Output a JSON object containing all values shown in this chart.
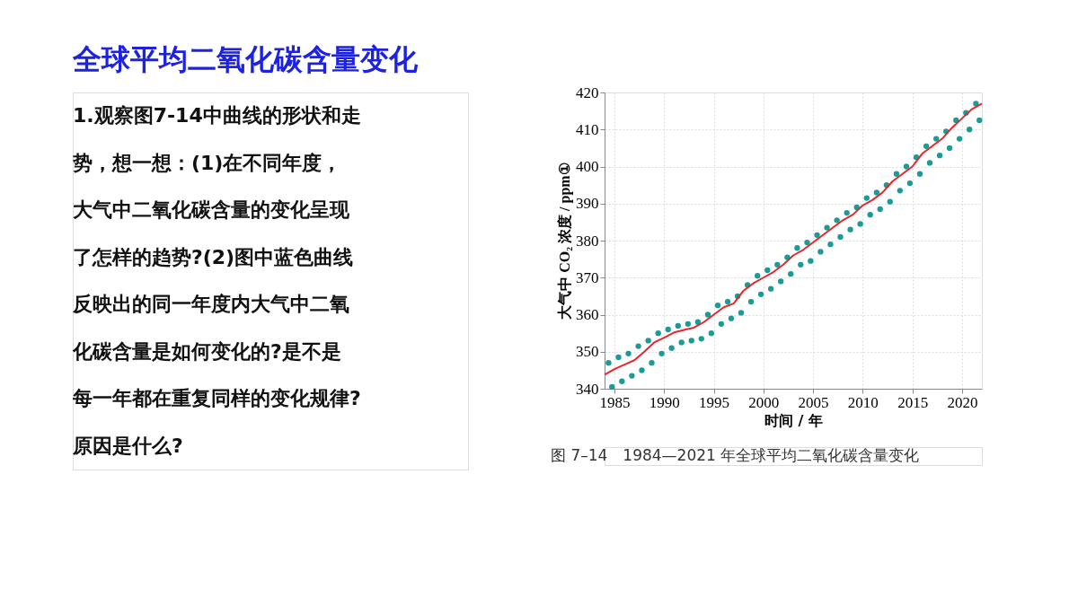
{
  "chart_data": {
    "type": "line",
    "title": "全球平均二氧化碳含量变化",
    "annotations": [
      "1.观察图7-14中曲线的形状和走",
      "势，想一想：(1)在不同年度，",
      "大气中二氧化碳含量的变化呈现",
      "了怎样的趋势?(2)图中蓝色曲线",
      "反映出的同一年度内大气中二氧",
      "化碳含量是如何变化的?是不是",
      "每一年都在重复同样的变化规律?",
      "原因是什么?",
      "图 7–14　1984—2021 年全球平均二氧化碳含量变化"
    ],
    "xlabel": "时间 / 年",
    "ylabel": "大气中 CO₂ 浓度 / ppm①",
    "xlim": [
      1984,
      2022
    ],
    "xticks": [
      1985,
      1990,
      1995,
      2000,
      2005,
      2010,
      2015,
      2020
    ],
    "ylim": [
      340,
      420
    ],
    "yticks": [
      340,
      350,
      360,
      370,
      380,
      390,
      400,
      410,
      420
    ],
    "grid": true,
    "series": [
      {
        "type": "scatter",
        "marker": "circle",
        "color": "#1a9b95",
        "x": [
          1984.4,
          1984.75,
          1985.4,
          1985.75,
          1986.4,
          1986.75,
          1987.4,
          1987.75,
          1988.4,
          1988.75,
          1989.4,
          1989.75,
          1990.4,
          1990.75,
          1991.4,
          1991.75,
          1992.4,
          1992.75,
          1993.4,
          1993.75,
          1994.4,
          1994.75,
          1995.4,
          1995.75,
          1996.4,
          1996.75,
          1997.4,
          1997.75,
          1998.4,
          1998.75,
          1999.4,
          1999.75,
          2000.4,
          2000.75,
          2001.4,
          2001.75,
          2002.4,
          2002.75,
          2003.4,
          2003.75,
          2004.4,
          2004.75,
          2005.4,
          2005.75,
          2006.4,
          2006.75,
          2007.4,
          2007.75,
          2008.4,
          2008.75,
          2009.4,
          2009.75,
          2010.4,
          2010.75,
          2011.4,
          2011.75,
          2012.4,
          2012.75,
          2013.4,
          2013.75,
          2014.4,
          2014.75,
          2015.4,
          2015.75,
          2016.4,
          2016.75,
          2017.4,
          2017.75,
          2018.4,
          2018.75,
          2019.4,
          2019.75,
          2020.4,
          2020.75,
          2021.4,
          2021.75
        ],
        "values": [
          347,
          340.5,
          348.5,
          342,
          349.5,
          343.5,
          351.5,
          345,
          353,
          347,
          355,
          349.5,
          356,
          351,
          357,
          352.5,
          357.5,
          353,
          358,
          353.5,
          360,
          355,
          362.5,
          357.5,
          363.5,
          359,
          365,
          360.5,
          368,
          363.5,
          370.5,
          365.5,
          372,
          367,
          373.5,
          369,
          375.5,
          371,
          378,
          373.5,
          379.5,
          374.5,
          381.5,
          377,
          383.5,
          379,
          385.5,
          381,
          387.5,
          383,
          389,
          384.5,
          391.5,
          387,
          393,
          388.5,
          395,
          390.5,
          398,
          393.5,
          400,
          395.5,
          402.5,
          398,
          405.5,
          401,
          407.5,
          403,
          409.5,
          405,
          412.5,
          407.5,
          414.5,
          410,
          417,
          412.5
        ]
      },
      {
        "marker": "none",
        "color": "#e8262a",
        "x": [
          1984,
          1985,
          1986,
          1987,
          1988,
          1989,
          1990,
          1991,
          1992,
          1993,
          1994,
          1995,
          1996,
          1997,
          1998,
          1999,
          2000,
          2001,
          2002,
          2003,
          2004,
          2005,
          2006,
          2007,
          2008,
          2009,
          2010,
          2011,
          2012,
          2013,
          2014,
          2015,
          2016,
          2017,
          2018,
          2019,
          2020,
          2021,
          2022
        ],
        "values": [
          343.8,
          345.3,
          346.5,
          347.7,
          350,
          352.5,
          353.8,
          355.2,
          355.9,
          356.5,
          358,
          360,
          362,
          363,
          366.5,
          368.5,
          370,
          371.5,
          373.5,
          376,
          377.5,
          379.5,
          381.5,
          383.5,
          385.5,
          387,
          389.5,
          391,
          393,
          396,
          398,
          400,
          403.5,
          405.5,
          407.5,
          410.5,
          413,
          415.5,
          417
        ]
      }
    ]
  }
}
